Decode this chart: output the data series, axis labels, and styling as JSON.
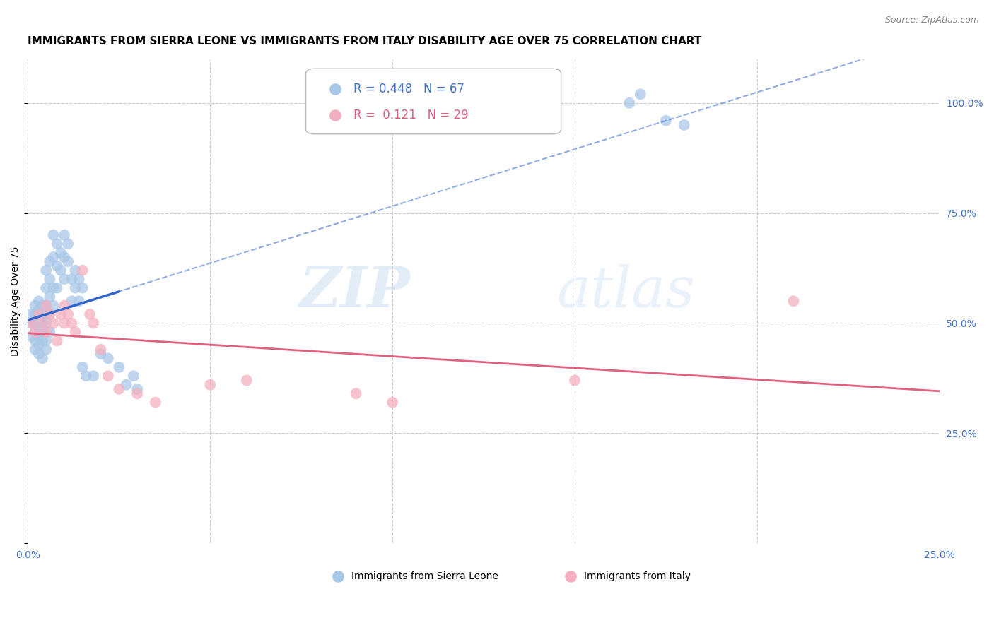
{
  "title": "IMMIGRANTS FROM SIERRA LEONE VS IMMIGRANTS FROM ITALY DISABILITY AGE OVER 75 CORRELATION CHART",
  "source": "Source: ZipAtlas.com",
  "ylabel": "Disability Age Over 75",
  "series1_label": "Immigrants from Sierra Leone",
  "series2_label": "Immigrants from Italy",
  "series1_R": "0.448",
  "series1_N": "67",
  "series2_R": "0.121",
  "series2_N": "29",
  "series1_color": "#a8c8e8",
  "series2_color": "#f4b0c0",
  "series1_line_color": "#3366cc",
  "series2_line_color": "#e06080",
  "axis_color": "#4472c4",
  "xlim": [
    0.0,
    0.25
  ],
  "ylim": [
    0.0,
    1.1
  ],
  "yticks": [
    0.0,
    0.25,
    0.5,
    0.75,
    1.0
  ],
  "ytick_labels": [
    "",
    "25.0%",
    "50.0%",
    "75.0%",
    "100.0%"
  ],
  "xticks": [
    0.0,
    0.05,
    0.1,
    0.15,
    0.2,
    0.25
  ],
  "xtick_labels": [
    "0.0%",
    "",
    "",
    "",
    "",
    "25.0%"
  ],
  "series1_x": [
    0.001,
    0.001,
    0.001,
    0.002,
    0.002,
    0.002,
    0.002,
    0.002,
    0.002,
    0.003,
    0.003,
    0.003,
    0.003,
    0.003,
    0.003,
    0.003,
    0.004,
    0.004,
    0.004,
    0.004,
    0.004,
    0.004,
    0.005,
    0.005,
    0.005,
    0.005,
    0.005,
    0.005,
    0.006,
    0.006,
    0.006,
    0.006,
    0.006,
    0.007,
    0.007,
    0.007,
    0.007,
    0.008,
    0.008,
    0.008,
    0.009,
    0.009,
    0.01,
    0.01,
    0.01,
    0.011,
    0.011,
    0.012,
    0.012,
    0.013,
    0.013,
    0.014,
    0.014,
    0.015,
    0.015,
    0.016,
    0.018,
    0.02,
    0.022,
    0.025,
    0.027,
    0.029,
    0.03,
    0.165,
    0.168,
    0.175,
    0.18
  ],
  "series1_y": [
    0.47,
    0.5,
    0.52,
    0.46,
    0.48,
    0.5,
    0.52,
    0.54,
    0.44,
    0.45,
    0.47,
    0.49,
    0.51,
    0.53,
    0.43,
    0.55,
    0.46,
    0.48,
    0.5,
    0.52,
    0.54,
    0.42,
    0.44,
    0.46,
    0.5,
    0.54,
    0.58,
    0.62,
    0.48,
    0.52,
    0.56,
    0.6,
    0.64,
    0.54,
    0.58,
    0.65,
    0.7,
    0.58,
    0.63,
    0.68,
    0.62,
    0.66,
    0.6,
    0.65,
    0.7,
    0.64,
    0.68,
    0.55,
    0.6,
    0.58,
    0.62,
    0.55,
    0.6,
    0.58,
    0.4,
    0.38,
    0.38,
    0.43,
    0.42,
    0.4,
    0.36,
    0.38,
    0.35,
    1.0,
    1.02,
    0.96,
    0.95
  ],
  "series2_x": [
    0.001,
    0.002,
    0.003,
    0.004,
    0.005,
    0.005,
    0.006,
    0.007,
    0.008,
    0.009,
    0.01,
    0.01,
    0.011,
    0.012,
    0.013,
    0.015,
    0.017,
    0.018,
    0.02,
    0.022,
    0.025,
    0.03,
    0.035,
    0.05,
    0.06,
    0.09,
    0.1,
    0.15,
    0.21
  ],
  "series2_y": [
    0.5,
    0.48,
    0.52,
    0.5,
    0.54,
    0.48,
    0.52,
    0.5,
    0.46,
    0.52,
    0.54,
    0.5,
    0.52,
    0.5,
    0.48,
    0.62,
    0.52,
    0.5,
    0.44,
    0.38,
    0.35,
    0.34,
    0.32,
    0.36,
    0.37,
    0.34,
    0.32,
    0.37,
    0.55
  ],
  "watermark_zip": "ZIP",
  "watermark_atlas": "atlas",
  "background_color": "#ffffff",
  "grid_color": "#cccccc",
  "title_fontsize": 11,
  "label_fontsize": 10,
  "tick_fontsize": 10,
  "legend_fontsize": 12,
  "solid_line_xmax": 0.025
}
